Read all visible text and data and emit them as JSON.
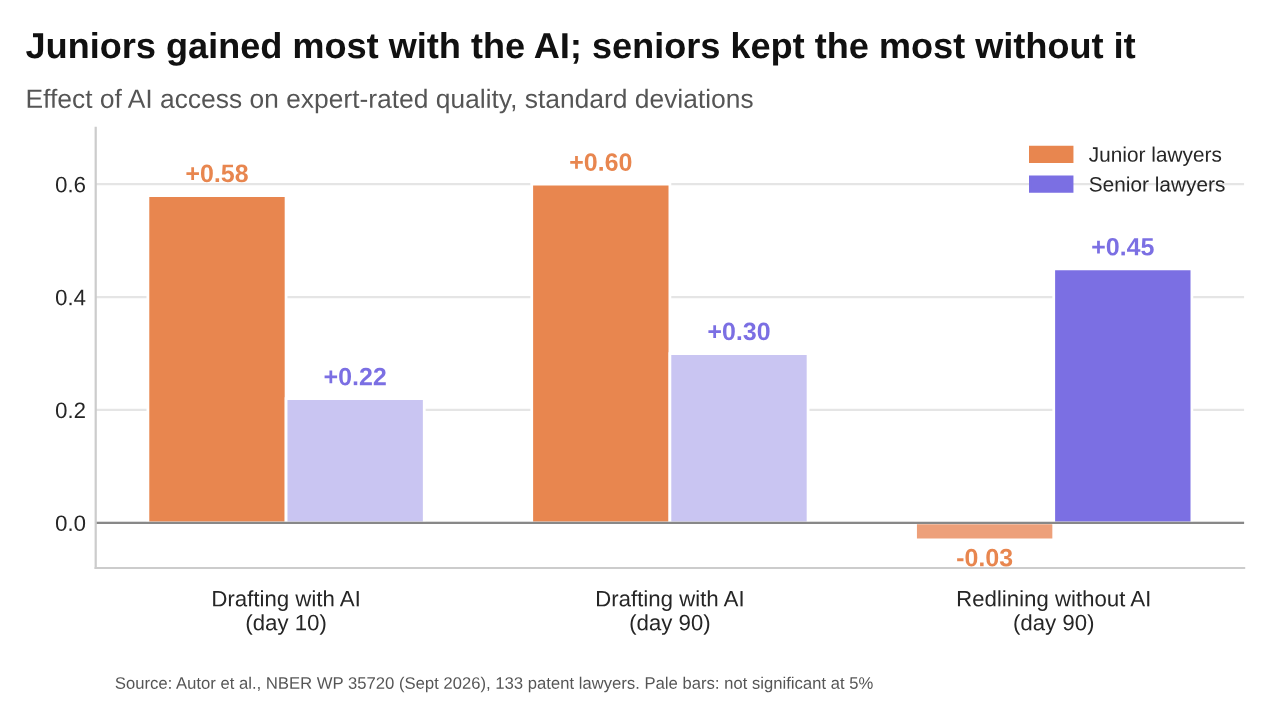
{
  "chart_data": {
    "type": "bar",
    "title": "Juniors gained most with the AI; seniors kept the most without it",
    "subtitle": "Effect of AI access on expert-rated quality, standard deviations",
    "categories": [
      "Drafting with AI\n(day 10)",
      "Drafting with AI\n(day 90)",
      "Redlining without AI\n(day 90)"
    ],
    "series": [
      {
        "name": "Junior lawyers",
        "color": "#e8864f",
        "colors": [
          "#e8864f",
          "#e8864f",
          "#eda07a"
        ],
        "values": [
          0.58,
          0.6,
          -0.03
        ],
        "value_labels": [
          "+0.58",
          "+0.60",
          "-0.03"
        ]
      },
      {
        "name": "Senior lawyers",
        "color": "#7b6fe3",
        "colors": [
          "#c9c5f2",
          "#c9c5f2",
          "#7b6fe3"
        ],
        "values": [
          0.22,
          0.3,
          0.45
        ],
        "value_labels": [
          "+0.22",
          "+0.30",
          "+0.45"
        ]
      }
    ],
    "ylim": [
      -0.08,
      0.7
    ],
    "yticks": [
      {
        "value": 0.0,
        "label": "0.0"
      },
      {
        "value": 0.2,
        "label": "0.2"
      },
      {
        "value": 0.4,
        "label": "0.4"
      },
      {
        "value": 0.6,
        "label": "0.6"
      }
    ],
    "grid": "y",
    "legend": "top right",
    "annotations": [
      "Source: Autor et al., NBER WP 35720 (Sept 2026), 133 patent lawyers. Pale bars: not significant at 5%"
    ]
  }
}
